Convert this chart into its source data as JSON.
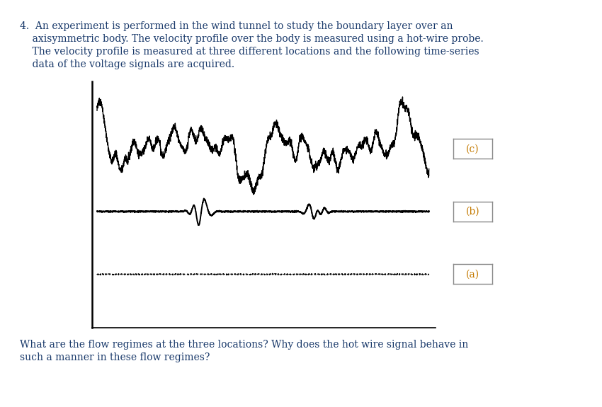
{
  "text_color": "#1a3a6b",
  "label_color": "#c47a00",
  "background_color": "#ffffff",
  "label_c": "(c)",
  "label_b": "(b)",
  "label_a": "(a)",
  "fig_width": 8.5,
  "fig_height": 5.75,
  "paragraph": "4.  An experiment is performed in the wind tunnel to study the boundary layer over an\n    axisymmetric body. The velocity profile over the body is measured using a hot-wire probe.\n    The velocity profile is measured at three different locations and the following time-series\n    data of the voltage signals are acquired.",
  "question": "What are the flow regimes at the three locations? Why does the hot wire signal behave in\nsuch a manner in these flow regimes?"
}
